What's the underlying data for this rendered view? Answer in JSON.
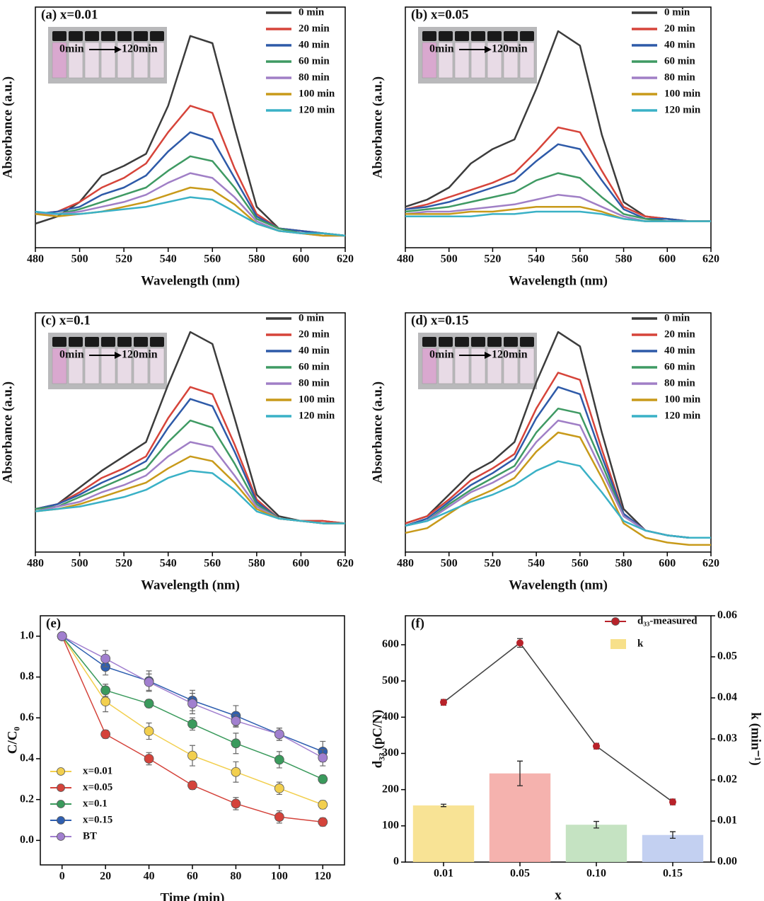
{
  "chart_data": [
    {
      "type": "line",
      "label": "(a) x=0.01",
      "xlabel": "Wavelength (nm)",
      "ylabel": "Absorbance (a.u.)",
      "inset": {
        "start": "0min",
        "end": "120min"
      },
      "legend": "upper right",
      "xlim": [
        480,
        620
      ],
      "ylim": [
        0,
        1
      ],
      "xticks": [
        480,
        500,
        520,
        540,
        560,
        580,
        600,
        620
      ],
      "x": [
        480,
        490,
        500,
        510,
        520,
        530,
        540,
        550,
        560,
        570,
        580,
        590,
        600,
        610,
        620
      ],
      "series": [
        {
          "name": "0 min",
          "color": "#3c3c3c",
          "values": [
            0.1,
            0.13,
            0.19,
            0.3,
            0.34,
            0.39,
            0.59,
            0.88,
            0.85,
            0.5,
            0.17,
            0.08,
            0.07,
            0.06,
            0.05
          ]
        },
        {
          "name": "20 min",
          "color": "#d6443a",
          "values": [
            0.14,
            0.15,
            0.19,
            0.25,
            0.29,
            0.35,
            0.48,
            0.59,
            0.56,
            0.33,
            0.14,
            0.08,
            0.07,
            0.06,
            0.05
          ]
        },
        {
          "name": "40 min",
          "color": "#2e5aa8",
          "values": [
            0.14,
            0.15,
            0.17,
            0.22,
            0.25,
            0.3,
            0.4,
            0.48,
            0.45,
            0.29,
            0.13,
            0.08,
            0.07,
            0.06,
            0.05
          ]
        },
        {
          "name": "60 min",
          "color": "#3f9a63",
          "values": [
            0.14,
            0.14,
            0.16,
            0.19,
            0.22,
            0.25,
            0.32,
            0.38,
            0.36,
            0.25,
            0.12,
            0.08,
            0.06,
            0.06,
            0.05
          ]
        },
        {
          "name": "80 min",
          "color": "#a07fc6",
          "values": [
            0.14,
            0.14,
            0.15,
            0.17,
            0.19,
            0.22,
            0.27,
            0.31,
            0.29,
            0.21,
            0.11,
            0.07,
            0.06,
            0.05,
            0.05
          ]
        },
        {
          "name": "100 min",
          "color": "#c89a1a",
          "values": [
            0.14,
            0.13,
            0.14,
            0.15,
            0.17,
            0.19,
            0.22,
            0.25,
            0.24,
            0.18,
            0.1,
            0.07,
            0.06,
            0.05,
            0.05
          ]
        },
        {
          "name": "120 min",
          "color": "#3ab1c6",
          "values": [
            0.15,
            0.14,
            0.14,
            0.15,
            0.16,
            0.17,
            0.19,
            0.21,
            0.2,
            0.15,
            0.1,
            0.07,
            0.06,
            0.06,
            0.05
          ]
        }
      ]
    },
    {
      "type": "line",
      "label": "(b) x=0.05",
      "xlabel": "Wavelength (nm)",
      "ylabel": "Absorbance (a.u.)",
      "inset": {
        "start": "0min",
        "end": "120min"
      },
      "legend": "upper right",
      "xlim": [
        480,
        620
      ],
      "ylim": [
        0,
        1
      ],
      "xticks": [
        480,
        500,
        520,
        540,
        560,
        580,
        600,
        620
      ],
      "x": [
        480,
        490,
        500,
        510,
        520,
        530,
        540,
        550,
        560,
        570,
        580,
        590,
        600,
        610,
        620
      ],
      "series": [
        {
          "name": "0 min",
          "color": "#3c3c3c",
          "values": [
            0.17,
            0.2,
            0.25,
            0.35,
            0.41,
            0.45,
            0.66,
            0.9,
            0.84,
            0.47,
            0.19,
            0.13,
            0.12,
            0.11,
            0.11
          ]
        },
        {
          "name": "20 min",
          "color": "#d6443a",
          "values": [
            0.16,
            0.18,
            0.21,
            0.24,
            0.27,
            0.31,
            0.4,
            0.5,
            0.48,
            0.32,
            0.17,
            0.13,
            0.12,
            0.11,
            0.11
          ]
        },
        {
          "name": "40 min",
          "color": "#2e5aa8",
          "values": [
            0.16,
            0.17,
            0.19,
            0.22,
            0.25,
            0.28,
            0.36,
            0.43,
            0.41,
            0.28,
            0.16,
            0.12,
            0.12,
            0.11,
            0.11
          ]
        },
        {
          "name": "60 min",
          "color": "#3f9a63",
          "values": [
            0.15,
            0.16,
            0.17,
            0.19,
            0.21,
            0.23,
            0.28,
            0.31,
            0.29,
            0.21,
            0.14,
            0.12,
            0.11,
            0.11,
            0.11
          ]
        },
        {
          "name": "80 min",
          "color": "#a07fc6",
          "values": [
            0.14,
            0.15,
            0.15,
            0.16,
            0.17,
            0.18,
            0.2,
            0.22,
            0.21,
            0.17,
            0.13,
            0.11,
            0.11,
            0.11,
            0.11
          ]
        },
        {
          "name": "100 min",
          "color": "#c89a1a",
          "values": [
            0.14,
            0.14,
            0.14,
            0.15,
            0.15,
            0.16,
            0.17,
            0.17,
            0.17,
            0.15,
            0.12,
            0.11,
            0.11,
            0.11,
            0.11
          ]
        },
        {
          "name": "120 min",
          "color": "#3ab1c6",
          "values": [
            0.13,
            0.13,
            0.13,
            0.13,
            0.14,
            0.14,
            0.15,
            0.15,
            0.15,
            0.14,
            0.12,
            0.11,
            0.11,
            0.11,
            0.11
          ]
        }
      ]
    },
    {
      "type": "line",
      "label": "(c) x=0.1",
      "xlabel": "Wavelength (nm)",
      "ylabel": "Absorbance (a.u.)",
      "inset": {
        "start": "0min",
        "end": "120min"
      },
      "legend": "upper right",
      "xlim": [
        480,
        620
      ],
      "ylim": [
        0,
        1
      ],
      "xticks": [
        480,
        500,
        520,
        540,
        560,
        580,
        600,
        620
      ],
      "x": [
        480,
        490,
        500,
        510,
        520,
        530,
        540,
        550,
        560,
        570,
        580,
        590,
        600,
        610,
        620
      ],
      "series": [
        {
          "name": "0 min",
          "color": "#3c3c3c",
          "values": [
            0.18,
            0.2,
            0.27,
            0.34,
            0.4,
            0.46,
            0.7,
            0.92,
            0.87,
            0.56,
            0.24,
            0.15,
            0.13,
            0.13,
            0.12
          ]
        },
        {
          "name": "20 min",
          "color": "#d6443a",
          "values": [
            0.18,
            0.2,
            0.25,
            0.31,
            0.35,
            0.4,
            0.56,
            0.69,
            0.66,
            0.45,
            0.22,
            0.14,
            0.13,
            0.13,
            0.12
          ]
        },
        {
          "name": "40 min",
          "color": "#2e5aa8",
          "values": [
            0.18,
            0.2,
            0.24,
            0.29,
            0.33,
            0.38,
            0.52,
            0.64,
            0.61,
            0.42,
            0.21,
            0.14,
            0.13,
            0.12,
            0.12
          ]
        },
        {
          "name": "60 min",
          "color": "#3f9a63",
          "values": [
            0.18,
            0.19,
            0.23,
            0.27,
            0.31,
            0.35,
            0.46,
            0.55,
            0.52,
            0.37,
            0.2,
            0.14,
            0.13,
            0.12,
            0.12
          ]
        },
        {
          "name": "80 min",
          "color": "#a07fc6",
          "values": [
            0.17,
            0.19,
            0.21,
            0.25,
            0.28,
            0.32,
            0.4,
            0.46,
            0.44,
            0.32,
            0.19,
            0.14,
            0.13,
            0.12,
            0.12
          ]
        },
        {
          "name": "100 min",
          "color": "#c89a1a",
          "values": [
            0.17,
            0.18,
            0.2,
            0.23,
            0.26,
            0.29,
            0.35,
            0.4,
            0.38,
            0.29,
            0.18,
            0.14,
            0.13,
            0.12,
            0.12
          ]
        },
        {
          "name": "120 min",
          "color": "#3ab1c6",
          "values": [
            0.17,
            0.18,
            0.19,
            0.21,
            0.23,
            0.26,
            0.31,
            0.34,
            0.33,
            0.26,
            0.17,
            0.14,
            0.13,
            0.12,
            0.12
          ]
        }
      ]
    },
    {
      "type": "line",
      "label": "(d) x=0.15",
      "xlabel": "Wavelength (nm)",
      "ylabel": "Absorbance (a.u.)",
      "inset": {
        "start": "0min",
        "end": "120min"
      },
      "legend": "upper right",
      "xlim": [
        480,
        620
      ],
      "ylim": [
        0,
        1
      ],
      "xticks": [
        480,
        500,
        520,
        540,
        560,
        580,
        600,
        620
      ],
      "x": [
        480,
        490,
        500,
        510,
        520,
        530,
        540,
        550,
        560,
        570,
        580,
        590,
        600,
        610,
        620
      ],
      "series": [
        {
          "name": "0 min",
          "color": "#3c3c3c",
          "values": [
            0.12,
            0.15,
            0.24,
            0.33,
            0.38,
            0.46,
            0.71,
            0.92,
            0.86,
            0.5,
            0.18,
            0.09,
            0.07,
            0.06,
            0.06
          ]
        },
        {
          "name": "20 min",
          "color": "#d6443a",
          "values": [
            0.12,
            0.15,
            0.22,
            0.3,
            0.35,
            0.41,
            0.6,
            0.75,
            0.72,
            0.43,
            0.16,
            0.09,
            0.07,
            0.06,
            0.06
          ]
        },
        {
          "name": "40 min",
          "color": "#2e5aa8",
          "values": [
            0.11,
            0.14,
            0.21,
            0.28,
            0.33,
            0.39,
            0.56,
            0.69,
            0.66,
            0.4,
            0.16,
            0.09,
            0.07,
            0.06,
            0.06
          ]
        },
        {
          "name": "60 min",
          "color": "#3f9a63",
          "values": [
            0.11,
            0.13,
            0.2,
            0.26,
            0.31,
            0.36,
            0.5,
            0.6,
            0.58,
            0.37,
            0.15,
            0.09,
            0.07,
            0.06,
            0.06
          ]
        },
        {
          "name": "80 min",
          "color": "#a07fc6",
          "values": [
            0.11,
            0.13,
            0.19,
            0.25,
            0.29,
            0.34,
            0.46,
            0.55,
            0.53,
            0.34,
            0.15,
            0.09,
            0.07,
            0.06,
            0.06
          ]
        },
        {
          "name": "100 min",
          "color": "#c89a1a",
          "values": [
            0.08,
            0.1,
            0.16,
            0.22,
            0.26,
            0.31,
            0.42,
            0.5,
            0.48,
            0.31,
            0.12,
            0.06,
            0.04,
            0.03,
            0.03
          ]
        },
        {
          "name": "120 min",
          "color": "#3ab1c6",
          "values": [
            0.11,
            0.13,
            0.17,
            0.21,
            0.24,
            0.28,
            0.34,
            0.38,
            0.36,
            0.25,
            0.13,
            0.09,
            0.07,
            0.06,
            0.06
          ]
        }
      ]
    },
    {
      "type": "line",
      "label": "(e)",
      "xlabel": "Time (min)",
      "ylabel": "C/C₀",
      "markers": true,
      "legend": "lower left",
      "xlim": [
        -10,
        130
      ],
      "ylim": [
        -0.12,
        1.1
      ],
      "xticks": [
        0,
        20,
        40,
        60,
        80,
        100,
        120
      ],
      "yticks": [
        {
          "value": 0,
          "label": "0.0"
        },
        {
          "value": 0.2,
          "label": "0.2"
        },
        {
          "value": 0.4,
          "label": "0.4"
        },
        {
          "value": 0.6,
          "label": "0.6"
        },
        {
          "value": 0.8,
          "label": "0.8"
        },
        {
          "value": 1,
          "label": "1.0"
        }
      ],
      "x": [
        0,
        20,
        40,
        60,
        80,
        100,
        120
      ],
      "series": [
        {
          "name": "x=0.01",
          "color": "#f2cf4e",
          "values": [
            1.0,
            0.68,
            0.535,
            0.415,
            0.335,
            0.255,
            0.175
          ],
          "errors": [
            0,
            0.05,
            0.04,
            0.05,
            0.05,
            0.03,
            0.02
          ]
        },
        {
          "name": "x=0.05",
          "color": "#d4433b",
          "values": [
            1.0,
            0.52,
            0.4,
            0.27,
            0.18,
            0.115,
            0.09
          ],
          "errors": [
            0,
            0.02,
            0.03,
            0.02,
            0.03,
            0.03,
            0.02
          ]
        },
        {
          "name": "x=0.1",
          "color": "#3a9a5c",
          "values": [
            1.0,
            0.735,
            0.67,
            0.57,
            0.475,
            0.395,
            0.3
          ],
          "errors": [
            0,
            0.03,
            0.02,
            0.03,
            0.05,
            0.04,
            0.02
          ]
        },
        {
          "name": "x=0.15",
          "color": "#2f5fb0",
          "values": [
            1.0,
            0.85,
            0.78,
            0.685,
            0.61,
            0.52,
            0.435
          ],
          "errors": [
            0,
            0.04,
            0.05,
            0.05,
            0.05,
            0.03,
            0.05
          ]
        },
        {
          "name": "BT",
          "color": "#a17fcf",
          "values": [
            1.0,
            0.89,
            0.775,
            0.67,
            0.585,
            0.52,
            0.405
          ],
          "errors": [
            0,
            0.04,
            0.04,
            0.05,
            0.03,
            0.03,
            0.04
          ]
        }
      ]
    },
    {
      "type": "combo",
      "label": "(f)",
      "xlabel": "x",
      "ylabel": "d₃₃ (pC/N)",
      "y2label": "k (min⁻¹)",
      "legend": "upper right",
      "categories": [
        "0.01",
        "0.05",
        "0.10",
        "0.15"
      ],
      "ylim": [
        0,
        680
      ],
      "yticks": [
        0,
        100,
        200,
        300,
        400,
        500,
        600
      ],
      "y2lim": [
        0,
        0.06
      ],
      "y2ticks": [
        {
          "value": 0,
          "label": "0.00"
        },
        {
          "value": 0.01,
          "label": "0.01"
        },
        {
          "value": 0.02,
          "label": "0.02"
        },
        {
          "value": 0.03,
          "label": "0.03"
        },
        {
          "value": 0.04,
          "label": "0.04"
        },
        {
          "value": 0.05,
          "label": "0.05"
        },
        {
          "value": 0.06,
          "label": "0.06"
        }
      ],
      "series": [
        {
          "name": "d₃₃-measured",
          "type": "line",
          "color": "#b8222a",
          "values": [
            441,
            605,
            320,
            166
          ],
          "errors": [
            8,
            12,
            8,
            8
          ]
        },
        {
          "name": "k",
          "type": "bar",
          "axis": "y2",
          "color": "#f7e08a",
          "colors": [
            "#f7e08a",
            "#f4aaa5",
            "#bfe0bb",
            "#bccbef"
          ],
          "values": [
            0.0138,
            0.0216,
            0.0091,
            0.0066
          ],
          "errors": [
            0.0003,
            0.003,
            0.0008,
            0.0008
          ]
        }
      ]
    }
  ]
}
